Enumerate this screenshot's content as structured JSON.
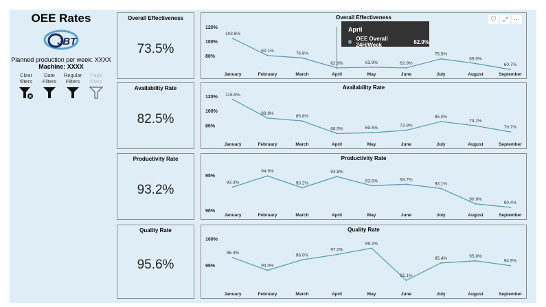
{
  "sidebar": {
    "title": "OEE Rates",
    "logo_text": "JBT",
    "planned": "Planned production per week: XXXX",
    "machine": "Machine: XXXX",
    "filters": [
      {
        "label": "Clear filters",
        "icon": "clear-filter-icon",
        "enabled": true
      },
      {
        "label": "Date Filters",
        "icon": "filter-icon",
        "enabled": true
      },
      {
        "label": "Regular Filters",
        "icon": "filter-icon",
        "enabled": true
      },
      {
        "label": "Page filters",
        "icon": "filter-outline-icon",
        "enabled": false
      }
    ]
  },
  "kpis": [
    {
      "label": "Overall Effectiveness",
      "value": "73.5%"
    },
    {
      "label": "Availability Rate",
      "value": "82.5%"
    },
    {
      "label": "Productivity Rate",
      "value": "93.2%"
    },
    {
      "label": "Quality Rate",
      "value": "95.6%"
    }
  ],
  "visual_icons": {
    "filter": "⛉",
    "focus": "⤢",
    "more": "···"
  },
  "tooltip": {
    "month": "April",
    "series": "OEE Overall 24H/Week",
    "value": "62.9%"
  },
  "line_color": "#5f9db3",
  "chart_data": [
    {
      "type": "line",
      "title": "Overall Effectiveness",
      "categories": [
        "January",
        "February",
        "March",
        "April",
        "May",
        "June",
        "July",
        "August",
        "September"
      ],
      "values": [
        103.8,
        80.1,
        76.8,
        62.9,
        63.9,
        62.9,
        75.5,
        69.0,
        60.7
      ],
      "labels": [
        "103.8%",
        "80.1%",
        "76.8%",
        "62.9%",
        "63.9%",
        "62.9%",
        "75.5%",
        "69.0%",
        "60.7%"
      ],
      "yticks": [
        "80%",
        "100%",
        "120%"
      ],
      "ytick_values": [
        80,
        100,
        120
      ],
      "ylim": [
        58,
        122
      ]
    },
    {
      "type": "line",
      "title": "Availability Rate",
      "categories": [
        "January",
        "February",
        "March",
        "April",
        "May",
        "June",
        "July",
        "August",
        "September"
      ],
      "values": [
        115.5,
        89.8,
        85.8,
        68.5,
        69.6,
        72.9,
        85.0,
        79.2,
        70.7
      ],
      "labels": [
        "115.5%",
        "89.8%",
        "85.8%",
        "68.5%",
        "69.6%",
        "72.9%",
        "85.0%",
        "79.2%",
        "70.7%"
      ],
      "yticks": [
        "80%",
        "100%",
        "120%"
      ],
      "ytick_values": [
        80,
        100,
        120
      ],
      "ylim": [
        66,
        122
      ]
    },
    {
      "type": "line",
      "title": "Productivity Rate",
      "categories": [
        "January",
        "February",
        "March",
        "April",
        "May",
        "June",
        "July",
        "August",
        "September"
      ],
      "values": [
        93.3,
        94.9,
        93.2,
        94.8,
        93.5,
        93.7,
        93.1,
        90.9,
        90.4
      ],
      "labels": [
        "93.3%",
        "94.9%",
        "93.2%",
        "94.8%",
        "93.5%",
        "93.7%",
        "93.1%",
        "90.9%",
        "90.4%"
      ],
      "yticks": [
        "90%",
        "95%"
      ],
      "ytick_values": [
        90,
        95
      ],
      "ylim": [
        89.9,
        95.3
      ]
    },
    {
      "type": "line",
      "title": "Quality Rate",
      "categories": [
        "January",
        "February",
        "March",
        "April",
        "May",
        "June",
        "July",
        "August",
        "September"
      ],
      "values": [
        96.4,
        94.0,
        96.0,
        97.0,
        98.2,
        92.1,
        95.4,
        95.8,
        94.9
      ],
      "labels": [
        "96.4%",
        "94.0%",
        "96.0%",
        "97.0%",
        "98.2%",
        "92.1%",
        "95.4%",
        "95.8%",
        "94.9%"
      ],
      "yticks": [
        "95%",
        "100%"
      ],
      "ytick_values": [
        95,
        100
      ],
      "ylim": [
        92,
        100.2
      ]
    }
  ]
}
